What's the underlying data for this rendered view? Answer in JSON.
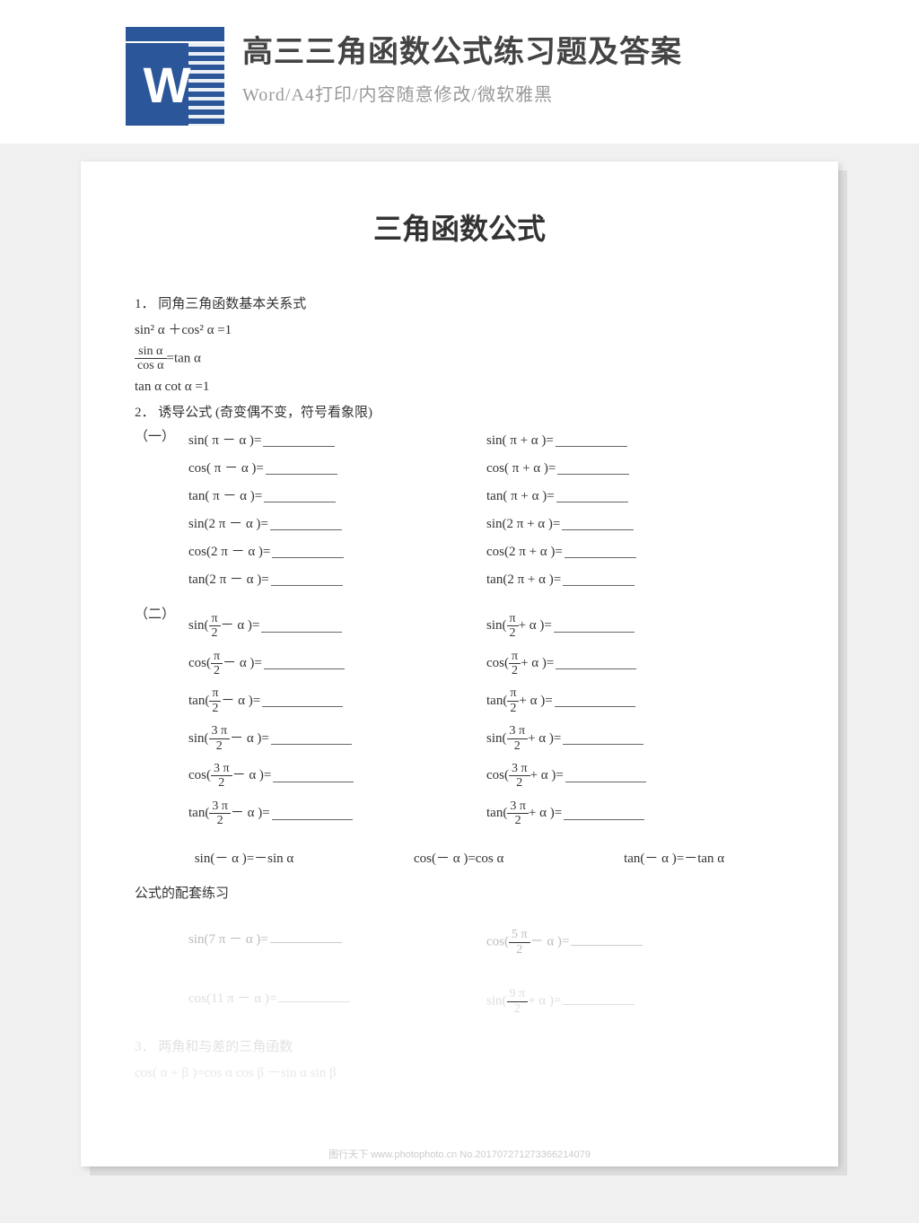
{
  "header": {
    "title": "高三三角函数公式练习题及答案",
    "subtitle": "Word/A4打印/内容随意修改/微软雅黑",
    "icon_letter": "W",
    "icon_color": "#2b579a"
  },
  "doc": {
    "title": "三角函数公式",
    "section1": {
      "heading": "1．  同角三角函数基本关系式",
      "f1": "sin² α ＋cos² α =1",
      "f2_num": "sin α",
      "f2_den": "cos α",
      "f2_rhs": "=tan α",
      "f3": "tan α cot α =1"
    },
    "section2": {
      "heading": "2．  诱导公式    (奇变偶不变，符号看象限)",
      "group1_label": "（一）",
      "group1": {
        "left": [
          "sin( π － α )=",
          "cos( π － α )=",
          "tan( π － α )=",
          "sin(2 π － α )=",
          "cos(2 π － α )=",
          "tan(2 π － α )="
        ],
        "right": [
          "sin( π + α )=",
          "cos( π + α )=",
          "tan( π + α )=",
          "sin(2 π + α )=",
          "cos(2 π + α )=",
          "tan(2 π + α )="
        ]
      },
      "group2_label": "（二）",
      "group2": {
        "funcs": [
          "sin",
          "cos",
          "tan",
          "sin",
          "cos",
          "tan"
        ],
        "nums": [
          "π",
          "π",
          "π",
          "3 π",
          "3 π",
          "3 π"
        ],
        "den": "2"
      },
      "neg": {
        "a": "sin(－ α )=－sin α",
        "b": "cos(－ α )=cos α",
        "c": "tan(－ α )=－tan α"
      },
      "practice_heading": "公式的配套练习",
      "practice": {
        "p1": "sin(7 π － α )=",
        "p2_func": "cos",
        "p2_num": "5 π",
        "p2_den": "2",
        "p2_tail": "－ α  )=",
        "p3": "cos(11 π － α )=",
        "p4_func": "sin",
        "p4_num": "9 π",
        "p4_den": "2",
        "p4_tail": "+ α  )="
      }
    },
    "section3": {
      "heading": "3．  两角和与差的三角函数",
      "f": "cos( α + β )=cos α cos β －sin α sin β"
    }
  },
  "watermark": "图行天下 www.photophoto.cn  No.201707271273366214079",
  "style": {
    "page_bg": "#ffffff",
    "body_bg": "#f0f0f0",
    "text_color": "#333333",
    "fade_color": "#bbbbbb",
    "title_fontsize": 32,
    "body_fontsize": 15
  }
}
